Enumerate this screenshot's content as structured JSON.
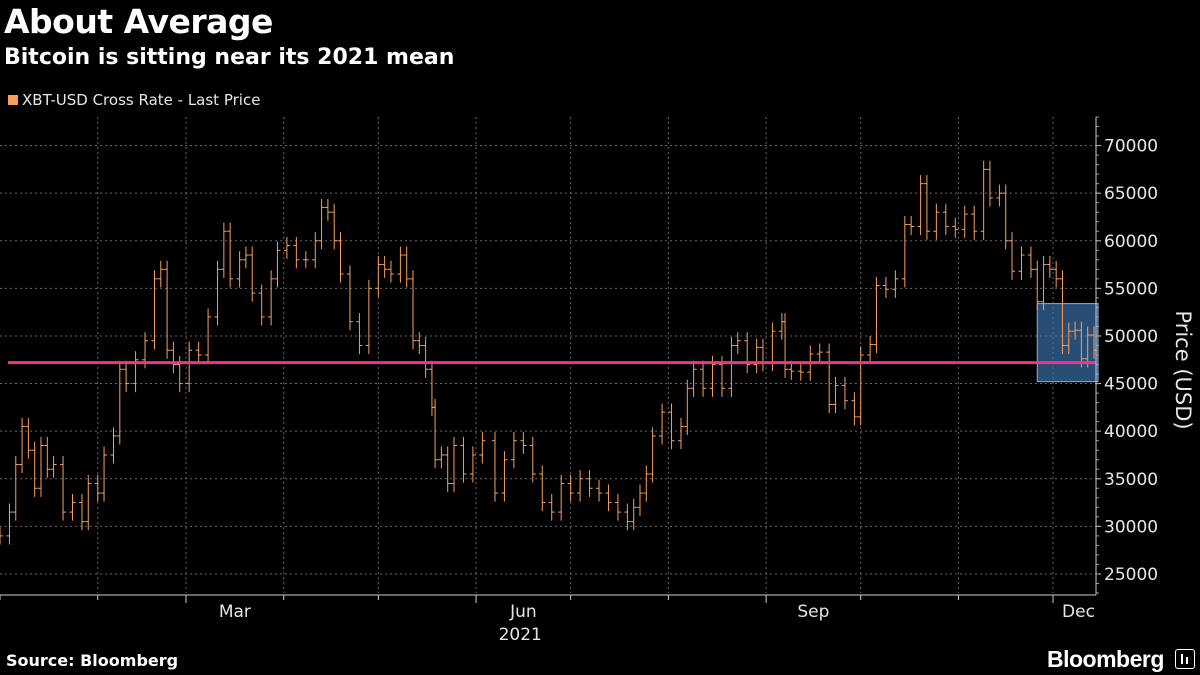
{
  "title": "About Average",
  "subtitle": "Bitcoin is sitting near its 2021 mean",
  "source": "Source: Bloomberg",
  "brand": "Bloomberg",
  "colors": {
    "series": "#f5a05f",
    "mean_line": "#e8378c",
    "highlight": "#3e78b5",
    "grid": "#666666"
  },
  "chart_data": {
    "type": "ohlc",
    "legend": [
      "XBT-USD Cross Rate - Last Price"
    ],
    "legend_position": "top-left",
    "ylabel": "Price (USD)",
    "y_axis_side": "right",
    "ylim": [
      23000,
      73000
    ],
    "y_ticks": [
      25000,
      30000,
      35000,
      40000,
      45000,
      50000,
      55000,
      60000,
      65000,
      70000
    ],
    "x_range": [
      "2021-01-01",
      "2021-12-14"
    ],
    "x_tick_labels": [
      {
        "date": "2021-03-01",
        "label": "Mar"
      },
      {
        "date": "2021-06-01",
        "label": "Jun"
      },
      {
        "date": "2021-09-01",
        "label": "Sep"
      },
      {
        "date": "2021-12-01",
        "label": "Dec"
      }
    ],
    "x_year_label": "2021",
    "grid": true,
    "mean_line": 47200,
    "highlight_box": {
      "x": [
        "2021-11-26",
        "2021-12-14"
      ],
      "y": [
        45200,
        53400
      ]
    },
    "series": [
      {
        "name": "XBT-USD Cross Rate - Last Price",
        "points": [
          [
            "2021-01-01",
            29000
          ],
          [
            "2021-01-04",
            31500
          ],
          [
            "2021-01-06",
            36500
          ],
          [
            "2021-01-08",
            40500
          ],
          [
            "2021-01-10",
            38000
          ],
          [
            "2021-01-12",
            34000
          ],
          [
            "2021-01-14",
            38500
          ],
          [
            "2021-01-16",
            36000
          ],
          [
            "2021-01-18",
            36500
          ],
          [
            "2021-01-21",
            31500
          ],
          [
            "2021-01-24",
            32500
          ],
          [
            "2021-01-27",
            30500
          ],
          [
            "2021-01-29",
            34500
          ],
          [
            "2021-02-01",
            33500
          ],
          [
            "2021-02-03",
            37500
          ],
          [
            "2021-02-06",
            39500
          ],
          [
            "2021-02-08",
            46500
          ],
          [
            "2021-02-10",
            45000
          ],
          [
            "2021-02-13",
            47500
          ],
          [
            "2021-02-16",
            49500
          ],
          [
            "2021-02-19",
            56000
          ],
          [
            "2021-02-21",
            57000
          ],
          [
            "2021-02-23",
            48500
          ],
          [
            "2021-02-25",
            47000
          ],
          [
            "2021-02-27",
            45000
          ],
          [
            "2021-03-02",
            48500
          ],
          [
            "2021-03-05",
            48000
          ],
          [
            "2021-03-08",
            52000
          ],
          [
            "2021-03-11",
            57000
          ],
          [
            "2021-03-13",
            61000
          ],
          [
            "2021-03-15",
            56000
          ],
          [
            "2021-03-18",
            58000
          ],
          [
            "2021-03-20",
            58500
          ],
          [
            "2021-03-22",
            54500
          ],
          [
            "2021-03-25",
            52000
          ],
          [
            "2021-03-28",
            56000
          ],
          [
            "2021-03-30",
            59000
          ],
          [
            "2021-04-02",
            59500
          ],
          [
            "2021-04-05",
            58000
          ],
          [
            "2021-04-08",
            58000
          ],
          [
            "2021-04-11",
            60000
          ],
          [
            "2021-04-13",
            63500
          ],
          [
            "2021-04-15",
            63000
          ],
          [
            "2021-04-17",
            60000
          ],
          [
            "2021-04-19",
            56500
          ],
          [
            "2021-04-22",
            51500
          ],
          [
            "2021-04-25",
            49000
          ],
          [
            "2021-04-28",
            55000
          ],
          [
            "2021-05-01",
            57500
          ],
          [
            "2021-05-03",
            57000
          ],
          [
            "2021-05-05",
            56500
          ],
          [
            "2021-05-08",
            58500
          ],
          [
            "2021-05-10",
            56000
          ],
          [
            "2021-05-12",
            49500
          ],
          [
            "2021-05-14",
            49000
          ],
          [
            "2021-05-16",
            46500
          ],
          [
            "2021-05-18",
            42500
          ],
          [
            "2021-05-19",
            37000
          ],
          [
            "2021-05-21",
            37500
          ],
          [
            "2021-05-23",
            34500
          ],
          [
            "2021-05-25",
            38500
          ],
          [
            "2021-05-28",
            35500
          ],
          [
            "2021-05-31",
            37500
          ],
          [
            "2021-06-03",
            39000
          ],
          [
            "2021-06-07",
            33500
          ],
          [
            "2021-06-10",
            37000
          ],
          [
            "2021-06-13",
            39000
          ],
          [
            "2021-06-16",
            38500
          ],
          [
            "2021-06-19",
            35500
          ],
          [
            "2021-06-22",
            32500
          ],
          [
            "2021-06-25",
            31500
          ],
          [
            "2021-06-28",
            34500
          ],
          [
            "2021-07-01",
            33500
          ],
          [
            "2021-07-04",
            35000
          ],
          [
            "2021-07-07",
            34000
          ],
          [
            "2021-07-10",
            33500
          ],
          [
            "2021-07-13",
            32500
          ],
          [
            "2021-07-16",
            31500
          ],
          [
            "2021-07-19",
            30500
          ],
          [
            "2021-07-21",
            32000
          ],
          [
            "2021-07-23",
            33500
          ],
          [
            "2021-07-25",
            35500
          ],
          [
            "2021-07-27",
            39500
          ],
          [
            "2021-07-30",
            42000
          ],
          [
            "2021-08-02",
            39000
          ],
          [
            "2021-08-05",
            40500
          ],
          [
            "2021-08-07",
            44500
          ],
          [
            "2021-08-09",
            46500
          ],
          [
            "2021-08-12",
            44500
          ],
          [
            "2021-08-15",
            47000
          ],
          [
            "2021-08-18",
            44500
          ],
          [
            "2021-08-21",
            49000
          ],
          [
            "2021-08-23",
            49500
          ],
          [
            "2021-08-26",
            47000
          ],
          [
            "2021-08-29",
            48800
          ],
          [
            "2021-08-31",
            47200
          ],
          [
            "2021-09-03",
            50500
          ],
          [
            "2021-09-06",
            51500
          ],
          [
            "2021-09-07",
            46500
          ],
          [
            "2021-09-09",
            46300
          ],
          [
            "2021-09-12",
            46200
          ],
          [
            "2021-09-15",
            48100
          ],
          [
            "2021-09-18",
            48300
          ],
          [
            "2021-09-21",
            42800
          ],
          [
            "2021-09-23",
            44800
          ],
          [
            "2021-09-26",
            43200
          ],
          [
            "2021-09-29",
            41500
          ],
          [
            "2021-10-01",
            48000
          ],
          [
            "2021-10-04",
            49100
          ],
          [
            "2021-10-06",
            55300
          ],
          [
            "2021-10-09",
            54900
          ],
          [
            "2021-10-12",
            56000
          ],
          [
            "2021-10-15",
            61700
          ],
          [
            "2021-10-17",
            61500
          ],
          [
            "2021-10-20",
            66000
          ],
          [
            "2021-10-22",
            61000
          ],
          [
            "2021-10-25",
            63000
          ],
          [
            "2021-10-28",
            61500
          ],
          [
            "2021-10-31",
            61200
          ],
          [
            "2021-11-03",
            62800
          ],
          [
            "2021-11-06",
            61000
          ],
          [
            "2021-11-09",
            67500
          ],
          [
            "2021-11-11",
            64500
          ],
          [
            "2021-11-14",
            65000
          ],
          [
            "2021-11-16",
            60000
          ],
          [
            "2021-11-18",
            56800
          ],
          [
            "2021-11-21",
            58500
          ],
          [
            "2021-11-24",
            57000
          ],
          [
            "2021-11-26",
            53600
          ],
          [
            "2021-11-28",
            57500
          ],
          [
            "2021-11-30",
            57000
          ],
          [
            "2021-12-02",
            56000
          ],
          [
            "2021-12-04",
            49000
          ],
          [
            "2021-12-06",
            50500
          ],
          [
            "2021-12-08",
            50600
          ],
          [
            "2021-12-10",
            47600
          ],
          [
            "2021-12-12",
            50100
          ],
          [
            "2021-12-14",
            48500
          ]
        ]
      }
    ]
  }
}
